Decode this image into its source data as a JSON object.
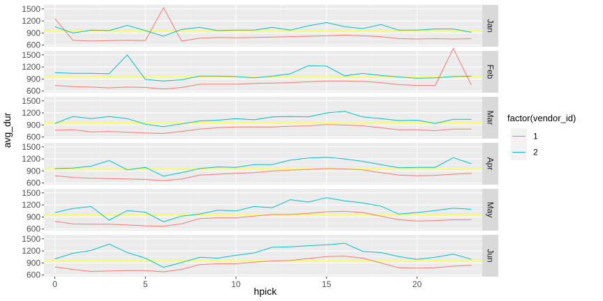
{
  "chart_data": {
    "type": "line",
    "xlabel": "hpick",
    "ylabel": "avg_dur",
    "x_ticks": [
      0,
      5,
      10,
      15,
      20
    ],
    "xlim": [
      -0.6,
      23.6
    ],
    "y_ticks": [
      600,
      900,
      1200,
      1500
    ],
    "ylim": [
      560,
      1600
    ],
    "reference_line": {
      "y": 945,
      "color": "#ffff66"
    },
    "legend": {
      "title": "factor(vendor_id)",
      "placement": "right",
      "entries": [
        {
          "label": "1",
          "color": "#F8766D"
        },
        {
          "label": "2",
          "color": "#00BFC4"
        }
      ]
    },
    "x": [
      0,
      1,
      2,
      3,
      4,
      5,
      6,
      7,
      8,
      9,
      10,
      11,
      12,
      13,
      14,
      15,
      16,
      17,
      18,
      19,
      20,
      21,
      22,
      23
    ],
    "panels": [
      {
        "label": "Jan",
        "series": [
          {
            "name": "1",
            "color": "#F8766D",
            "values": [
              1260,
              720,
              700,
              710,
              720,
              715,
              1530,
              700,
              770,
              790,
              780,
              790,
              800,
              810,
              820,
              830,
              850,
              830,
              810,
              760,
              750,
              760,
              750,
              760
            ]
          },
          {
            "name": "2",
            "color": "#00BFC4",
            "values": [
              1060,
              900,
              970,
              960,
              1090,
              960,
              820,
              990,
              1040,
              960,
              970,
              970,
              1040,
              970,
              1080,
              1160,
              1060,
              1010,
              1110,
              970,
              970,
              1000,
              1000,
              920
            ]
          }
        ]
      },
      {
        "label": "Feb",
        "series": [
          {
            "name": "1",
            "color": "#F8766D",
            "values": [
              740,
              710,
              700,
              680,
              700,
              690,
              650,
              690,
              770,
              770,
              770,
              790,
              800,
              810,
              830,
              850,
              850,
              840,
              810,
              760,
              740,
              740,
              1660,
              750
            ]
          },
          {
            "name": "2",
            "color": "#00BFC4",
            "values": [
              1060,
              1040,
              1040,
              1030,
              1500,
              890,
              850,
              880,
              970,
              970,
              960,
              930,
              970,
              1030,
              1230,
              1220,
              980,
              1040,
              990,
              950,
              920,
              930,
              960,
              970
            ]
          }
        ]
      },
      {
        "label": "Mar",
        "series": [
          {
            "name": "1",
            "color": "#F8766D",
            "values": [
              770,
              780,
              730,
              740,
              720,
              700,
              690,
              740,
              800,
              830,
              850,
              850,
              850,
              870,
              880,
              910,
              900,
              880,
              830,
              780,
              780,
              760,
              800,
              800
            ]
          },
          {
            "name": "2",
            "color": "#00BFC4",
            "values": [
              940,
              1110,
              1060,
              1110,
              1060,
              920,
              860,
              930,
              1000,
              1020,
              1060,
              1030,
              1100,
              1110,
              1100,
              1200,
              1240,
              1100,
              1060,
              1010,
              1020,
              940,
              1040,
              1040
            ]
          }
        ]
      },
      {
        "label": "Apr",
        "series": [
          {
            "name": "1",
            "color": "#F8766D",
            "values": [
              780,
              740,
              720,
              710,
              700,
              690,
              660,
              700,
              800,
              820,
              840,
              860,
              900,
              920,
              940,
              960,
              950,
              930,
              860,
              800,
              780,
              790,
              820,
              840
            ]
          },
          {
            "name": "2",
            "color": "#00BFC4",
            "values": [
              960,
              970,
              1020,
              1160,
              930,
              990,
              770,
              860,
              960,
              1000,
              990,
              1060,
              1060,
              1170,
              1220,
              1240,
              1200,
              1140,
              1060,
              980,
              990,
              990,
              1230,
              1080
            ]
          }
        ]
      },
      {
        "label": "May",
        "series": [
          {
            "name": "1",
            "color": "#F8766D",
            "values": [
              790,
              730,
              720,
              720,
              700,
              680,
              670,
              730,
              860,
              880,
              880,
              920,
              960,
              960,
              990,
              1030,
              1040,
              1010,
              920,
              830,
              800,
              810,
              830,
              830
            ]
          },
          {
            "name": "2",
            "color": "#00BFC4",
            "values": [
              1010,
              1110,
              1160,
              820,
              1060,
              1020,
              780,
              920,
              970,
              1070,
              1050,
              1160,
              1130,
              1330,
              1270,
              1380,
              1300,
              1250,
              1170,
              970,
              1010,
              1060,
              1120,
              1090
            ]
          }
        ]
      },
      {
        "label": "Jun",
        "series": [
          {
            "name": "1",
            "color": "#F8766D",
            "values": [
              800,
              740,
              690,
              700,
              710,
              710,
              680,
              740,
              860,
              880,
              880,
              920,
              950,
              960,
              1010,
              1060,
              1070,
              1020,
              900,
              780,
              770,
              780,
              820,
              840
            ]
          },
          {
            "name": "2",
            "color": "#00BFC4",
            "values": [
              1000,
              1140,
              1210,
              1370,
              1160,
              1020,
              790,
              910,
              1040,
              1020,
              1090,
              1150,
              1290,
              1300,
              1330,
              1350,
              1390,
              1190,
              1160,
              1060,
              990,
              1040,
              1120,
              990
            ]
          }
        ]
      }
    ]
  }
}
